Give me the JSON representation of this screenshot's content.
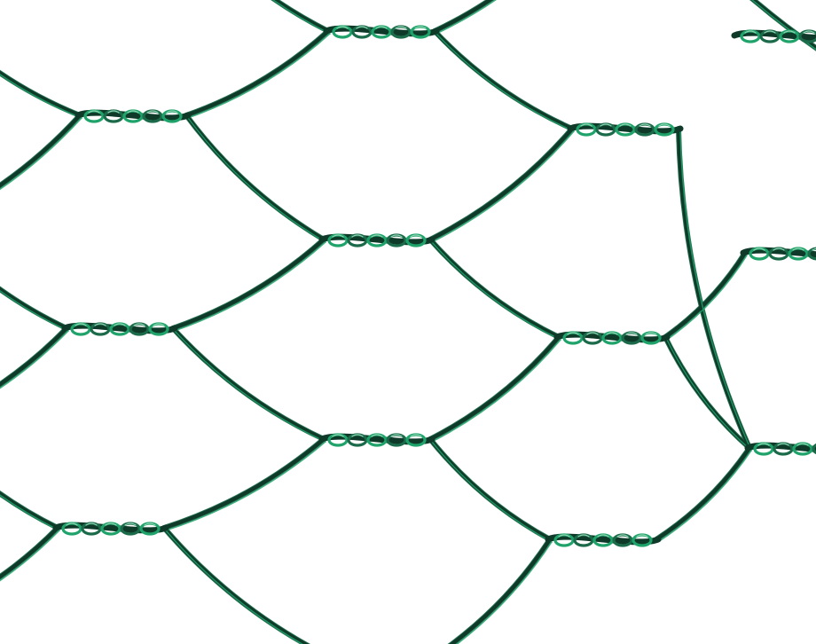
{
  "image": {
    "subject": "",
    "palette": {
      "background": "#ffffff",
      "wire_dark": "#0f3a2a",
      "wire_mid": "#1b6a4a",
      "wire_green": "#1fa36a",
      "wire_light": "#8fd4b2"
    },
    "icons": [
      "hexagonal-mesh-icon"
    ]
  }
}
